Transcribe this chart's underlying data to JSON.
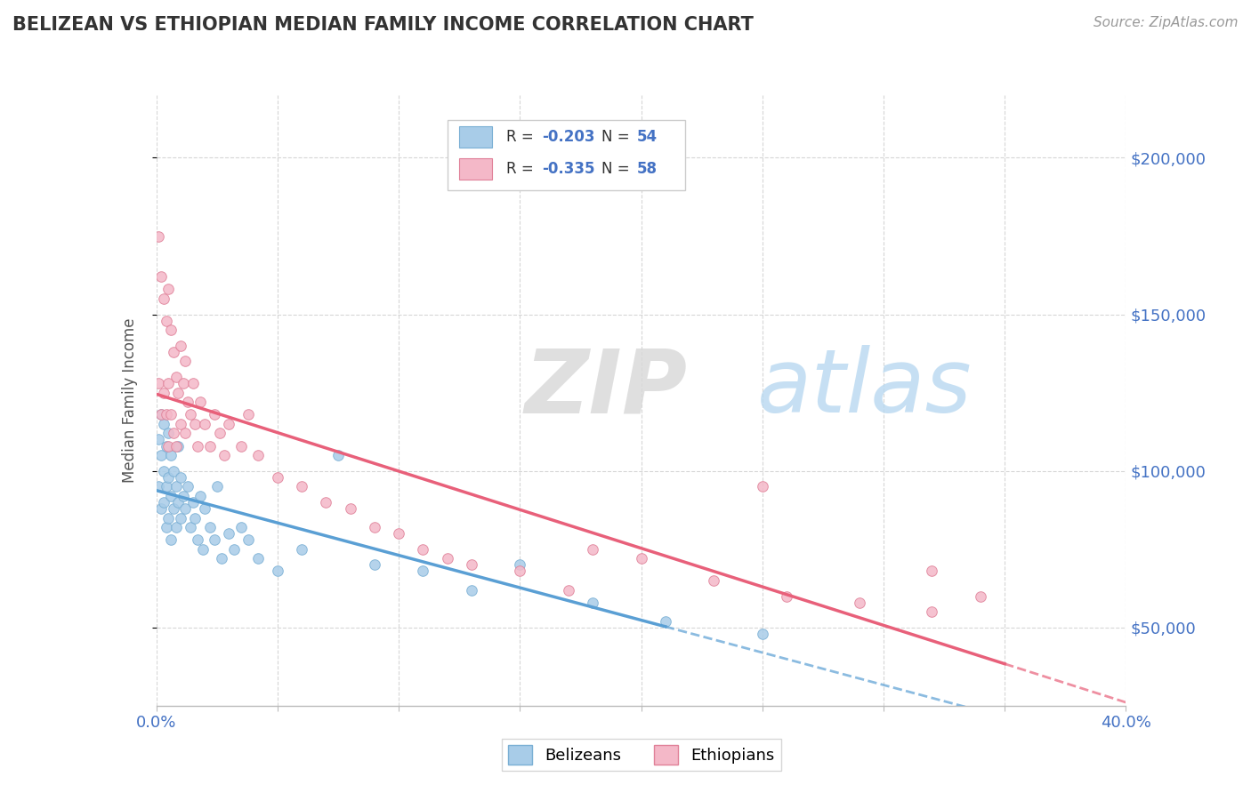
{
  "title": "BELIZEAN VS ETHIOPIAN MEDIAN FAMILY INCOME CORRELATION CHART",
  "source": "Source: ZipAtlas.com",
  "ylabel": "Median Family Income",
  "xlim": [
    0.0,
    0.4
  ],
  "ylim": [
    25000,
    220000
  ],
  "xticks": [
    0.0,
    0.05,
    0.1,
    0.15,
    0.2,
    0.25,
    0.3,
    0.35,
    0.4
  ],
  "ytick_positions": [
    50000,
    100000,
    150000,
    200000
  ],
  "ytick_labels": [
    "$50,000",
    "$100,000",
    "$150,000",
    "$200,000"
  ],
  "belizean_color": "#a8cce8",
  "ethiopian_color": "#f4b8c8",
  "belizean_edge": "#7aafd4",
  "ethiopian_edge": "#e08098",
  "regression_blue": "#5a9fd4",
  "regression_pink": "#e8607a",
  "R_belizean": -0.203,
  "N_belizean": 54,
  "R_ethiopian": -0.335,
  "N_ethiopian": 58,
  "accent_color": "#4472c4",
  "background_color": "#ffffff",
  "grid_color": "#cccccc",
  "title_color": "#333333",
  "axis_label_color": "#555555",
  "belizean_scatter_x": [
    0.001,
    0.001,
    0.002,
    0.002,
    0.002,
    0.003,
    0.003,
    0.003,
    0.004,
    0.004,
    0.004,
    0.005,
    0.005,
    0.005,
    0.006,
    0.006,
    0.006,
    0.007,
    0.007,
    0.008,
    0.008,
    0.009,
    0.009,
    0.01,
    0.01,
    0.011,
    0.012,
    0.013,
    0.014,
    0.015,
    0.016,
    0.017,
    0.018,
    0.019,
    0.02,
    0.022,
    0.024,
    0.025,
    0.027,
    0.03,
    0.032,
    0.035,
    0.038,
    0.042,
    0.05,
    0.06,
    0.075,
    0.09,
    0.11,
    0.13,
    0.15,
    0.18,
    0.21,
    0.25
  ],
  "belizean_scatter_y": [
    110000,
    95000,
    118000,
    105000,
    88000,
    115000,
    100000,
    90000,
    108000,
    95000,
    82000,
    112000,
    98000,
    85000,
    105000,
    92000,
    78000,
    100000,
    88000,
    95000,
    82000,
    108000,
    90000,
    98000,
    85000,
    92000,
    88000,
    95000,
    82000,
    90000,
    85000,
    78000,
    92000,
    75000,
    88000,
    82000,
    78000,
    95000,
    72000,
    80000,
    75000,
    82000,
    78000,
    72000,
    68000,
    75000,
    105000,
    70000,
    68000,
    62000,
    70000,
    58000,
    52000,
    48000
  ],
  "ethiopian_scatter_x": [
    0.001,
    0.001,
    0.002,
    0.002,
    0.003,
    0.003,
    0.004,
    0.004,
    0.005,
    0.005,
    0.005,
    0.006,
    0.006,
    0.007,
    0.007,
    0.008,
    0.008,
    0.009,
    0.01,
    0.01,
    0.011,
    0.012,
    0.012,
    0.013,
    0.014,
    0.015,
    0.016,
    0.017,
    0.018,
    0.02,
    0.022,
    0.024,
    0.026,
    0.028,
    0.03,
    0.035,
    0.038,
    0.042,
    0.05,
    0.06,
    0.07,
    0.08,
    0.09,
    0.1,
    0.11,
    0.12,
    0.15,
    0.17,
    0.2,
    0.23,
    0.26,
    0.29,
    0.32,
    0.34,
    0.25,
    0.18,
    0.13,
    0.32
  ],
  "ethiopian_scatter_y": [
    175000,
    128000,
    162000,
    118000,
    155000,
    125000,
    148000,
    118000,
    158000,
    128000,
    108000,
    145000,
    118000,
    138000,
    112000,
    130000,
    108000,
    125000,
    140000,
    115000,
    128000,
    135000,
    112000,
    122000,
    118000,
    128000,
    115000,
    108000,
    122000,
    115000,
    108000,
    118000,
    112000,
    105000,
    115000,
    108000,
    118000,
    105000,
    98000,
    95000,
    90000,
    88000,
    82000,
    80000,
    75000,
    72000,
    68000,
    62000,
    72000,
    65000,
    60000,
    58000,
    55000,
    60000,
    95000,
    75000,
    70000,
    68000
  ]
}
